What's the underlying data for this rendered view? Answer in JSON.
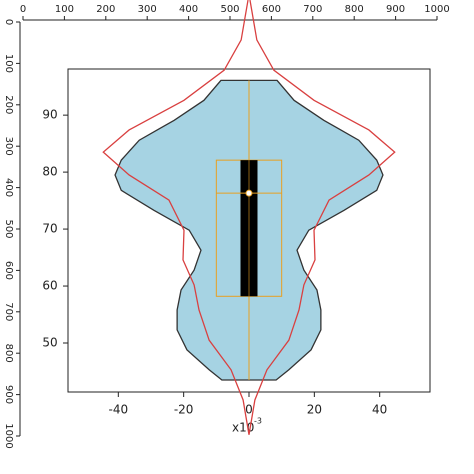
{
  "ruler": {
    "lim": [
      0,
      1000
    ],
    "ticks": [
      0,
      100,
      200,
      300,
      400,
      500,
      600,
      700,
      800,
      900,
      1000
    ]
  },
  "chart_data": {
    "type": "violin",
    "xlim": [
      -55.4,
      55.4
    ],
    "xticks": [
      -40,
      -20,
      0,
      20,
      40
    ],
    "ylim": [
      41.4,
      98.1
    ],
    "yticks": [
      50,
      60,
      70,
      80,
      90
    ],
    "x_scale_label": "x10",
    "x_scale_exponent": "-3",
    "violin": {
      "color": "#a6d3e3",
      "y": [
        96.1,
        92.6,
        89.1,
        85.6,
        82.1,
        79.5,
        76.8,
        73.3,
        69.8,
        66.3,
        62.8,
        59.3,
        55.8,
        52.3,
        48.8,
        45.3,
        43.5
      ],
      "half_width": [
        8.6,
        13.8,
        22.9,
        33.6,
        39.1,
        41,
        39.1,
        29.1,
        18.3,
        14.7,
        16.8,
        20.8,
        22,
        22,
        19,
        12.2,
        8.3
      ]
    },
    "density": {
      "color": "#d94040",
      "y": [
        110.2,
        103.2,
        97.9,
        92.6,
        87.4,
        83.5,
        79.5,
        75.1,
        69.8,
        64.6,
        60.2,
        55.8,
        50.5,
        45.3,
        40,
        33.9
      ],
      "half_width": [
        0.3,
        2.4,
        7.6,
        19.9,
        36.7,
        44.6,
        36.7,
        24.5,
        19.9,
        20.2,
        16.8,
        15.3,
        12.2,
        5.5,
        1.8,
        0
      ]
    },
    "box": {
      "color": "#e8a020",
      "q1": 58.2,
      "q3": 82.1,
      "median": 76.3,
      "whisker_low": 43.5,
      "whisker_high": 96.1,
      "half_width": 10
    },
    "inner_box": {
      "color": "#000000",
      "half_width": 2.6
    }
  }
}
